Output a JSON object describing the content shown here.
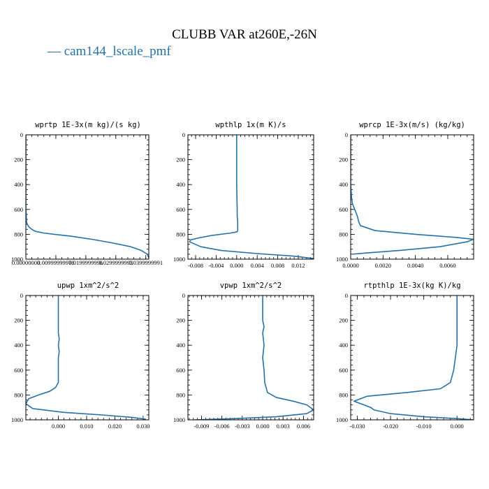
{
  "title": "CLUBB VAR at260E,-26N",
  "legend_label": "— cam144_lscale_pmf",
  "colors": {
    "series": "#2372a8",
    "frame": "#000000"
  },
  "chart_data": [
    {
      "type": "line",
      "title": "wprtp  1E-3x(m kg)/(s kg)",
      "series": [
        {
          "name": "cam144_lscale_pmf",
          "x": [
            0,
            0,
            0,
            0,
            0,
            0,
            0,
            0.0001,
            0.0002,
            0.0005,
            0.001,
            0.0015,
            0.002,
            0.003,
            0.006,
            0.0095,
            0.015,
            0.022,
            0.029,
            0.035,
            0.0385,
            0.0405,
            0.041
          ],
          "y": [
            0,
            100,
            200,
            300,
            400,
            500,
            600,
            650,
            700,
            720,
            740,
            750,
            760,
            775,
            790,
            800,
            815,
            840,
            870,
            900,
            930,
            960,
            990
          ]
        }
      ],
      "xlim": [
        0,
        0.041
      ],
      "ylim": [
        0,
        1000
      ],
      "xticks": [
        0,
        0.01,
        0.02,
        0.03,
        0.04
      ],
      "xtick_labels": [
        "0.00000000",
        "0.00999999978",
        "0.0199999996",
        "0.0299999993",
        "0.0399999991"
      ],
      "yticks": [
        0,
        200,
        400,
        600,
        800,
        1000
      ],
      "ytick_labels": [
        "0",
        "200",
        "400",
        "600",
        "800",
        "1000"
      ]
    },
    {
      "type": "line",
      "title": "wpthlp  1x(m K)/s",
      "series": [
        {
          "name": "cam144_lscale_pmf",
          "x": [
            0,
            0,
            0,
            0.0001,
            0.0001,
            0.0002,
            0.0002,
            0.0002,
            0.0001,
            -0.0012,
            -0.005,
            -0.0075,
            -0.009,
            -0.0092,
            -0.007,
            -0.003,
            0.004,
            0.011,
            0.015
          ],
          "y": [
            0,
            200,
            400,
            600,
            650,
            700,
            740,
            770,
            780,
            790,
            810,
            830,
            845,
            860,
            900,
            930,
            955,
            975,
            995
          ]
        }
      ],
      "xlim": [
        -0.0095,
        0.015
      ],
      "ylim": [
        0,
        1000
      ],
      "xticks": [
        -0.008,
        -0.004,
        0,
        0.004,
        0.008,
        0.012
      ],
      "xtick_labels": [
        "-0.008",
        "-0.004",
        "0.000",
        "0.004",
        "0.008",
        "0.012"
      ],
      "yticks": [
        0,
        200,
        400,
        600,
        800,
        1000
      ],
      "ytick_labels": [
        "0",
        "200",
        "400",
        "600",
        "800",
        "1000"
      ]
    },
    {
      "type": "line",
      "title": "wprcp  1E-3x(m/s) (kg/kg)",
      "series": [
        {
          "name": "cam144_lscale_pmf",
          "x": [
            0,
            0,
            0,
            5e-05,
            0.0001,
            0.00025,
            0.0004,
            0.0005,
            0.0006,
            0.0015,
            0.004,
            0.0065,
            0.0076,
            0.0072,
            0.0055,
            0.003,
            0.001,
            0.0001
          ],
          "y": [
            0,
            200,
            400,
            500,
            550,
            600,
            650,
            700,
            730,
            770,
            800,
            825,
            840,
            860,
            900,
            930,
            950,
            960
          ]
        }
      ],
      "xlim": [
        0,
        0.0076
      ],
      "ylim": [
        0,
        1000
      ],
      "xticks": [
        0,
        0.002,
        0.004,
        0.006
      ],
      "xtick_labels": [
        "0.0000",
        "0.0020",
        "0.0040",
        "0.0060"
      ],
      "yticks": [
        0,
        200,
        400,
        600,
        800,
        1000
      ],
      "ytick_labels": [
        "0",
        "200",
        "400",
        "600",
        "800",
        "1000"
      ]
    },
    {
      "type": "line",
      "title": "upwp  1xm^2/s^2",
      "series": [
        {
          "name": "cam144_lscale_pmf",
          "x": [
            0,
            0,
            0,
            0.0003,
            0,
            0.0003,
            0,
            0,
            0,
            -0.001,
            -0.003,
            -0.007,
            -0.0105,
            -0.0115,
            -0.009,
            0.002,
            0.015,
            0.026,
            0.031
          ],
          "y": [
            0,
            200,
            300,
            350,
            400,
            450,
            500,
            600,
            700,
            740,
            770,
            800,
            830,
            870,
            910,
            940,
            960,
            980,
            995
          ]
        }
      ],
      "xlim": [
        -0.0115,
        0.032
      ],
      "ylim": [
        0,
        1000
      ],
      "xticks": [
        0,
        0.01,
        0.02,
        0.03
      ],
      "xtick_labels": [
        "0.000",
        "0.010",
        "0.020",
        "0.030"
      ],
      "yticks": [
        0,
        200,
        400,
        600,
        800,
        1000
      ],
      "ytick_labels": [
        "0",
        "200",
        "400",
        "600",
        "800",
        "1000"
      ]
    },
    {
      "type": "line",
      "title": "vpwp  1xm^2/s^2",
      "series": [
        {
          "name": "cam144_lscale_pmf",
          "x": [
            0,
            0,
            0,
            0.0002,
            0,
            0.0002,
            0,
            0.0002,
            0.0003,
            0.0007,
            0.002,
            0.0045,
            0.0065,
            0.0075,
            0.0065,
            0.002,
            -0.004,
            -0.01
          ],
          "y": [
            0,
            150,
            200,
            250,
            300,
            400,
            500,
            600,
            700,
            780,
            820,
            850,
            880,
            920,
            950,
            975,
            990,
            1000
          ]
        }
      ],
      "xlim": [
        -0.011,
        0.0075
      ],
      "ylim": [
        0,
        1000
      ],
      "xticks": [
        -0.009,
        -0.006,
        -0.003,
        0,
        0.003,
        0.006
      ],
      "xtick_labels": [
        "-0.009",
        "-0.006",
        "-0.003",
        "0.000",
        "0.003",
        "0.006"
      ],
      "yticks": [
        0,
        200,
        400,
        600,
        800,
        1000
      ],
      "ytick_labels": [
        "0",
        "200",
        "400",
        "600",
        "800",
        "1000"
      ]
    },
    {
      "type": "line",
      "title": "rtpthlp  1E-3x(kg K)/kg",
      "series": [
        {
          "name": "cam144_lscale_pmf",
          "x": [
            0,
            0,
            0,
            -0.0005,
            -0.001,
            -0.002,
            -0.005,
            -0.015,
            -0.027,
            -0.031,
            -0.028,
            -0.026,
            -0.025,
            -0.02,
            -0.01,
            0,
            0.005
          ],
          "y": [
            0,
            200,
            400,
            500,
            600,
            700,
            750,
            780,
            810,
            850,
            880,
            900,
            920,
            950,
            975,
            990,
            1000
          ]
        }
      ],
      "xlim": [
        -0.032,
        0.005
      ],
      "ylim": [
        0,
        1000
      ],
      "xticks": [
        -0.03,
        -0.02,
        -0.01,
        0
      ],
      "xtick_labels": [
        "-0.030",
        "-0.020",
        "-0.010",
        "0.000"
      ],
      "yticks": [
        0,
        200,
        400,
        600,
        800,
        1000
      ],
      "ytick_labels": [
        "0",
        "200",
        "400",
        "600",
        "800",
        "1000"
      ]
    }
  ]
}
